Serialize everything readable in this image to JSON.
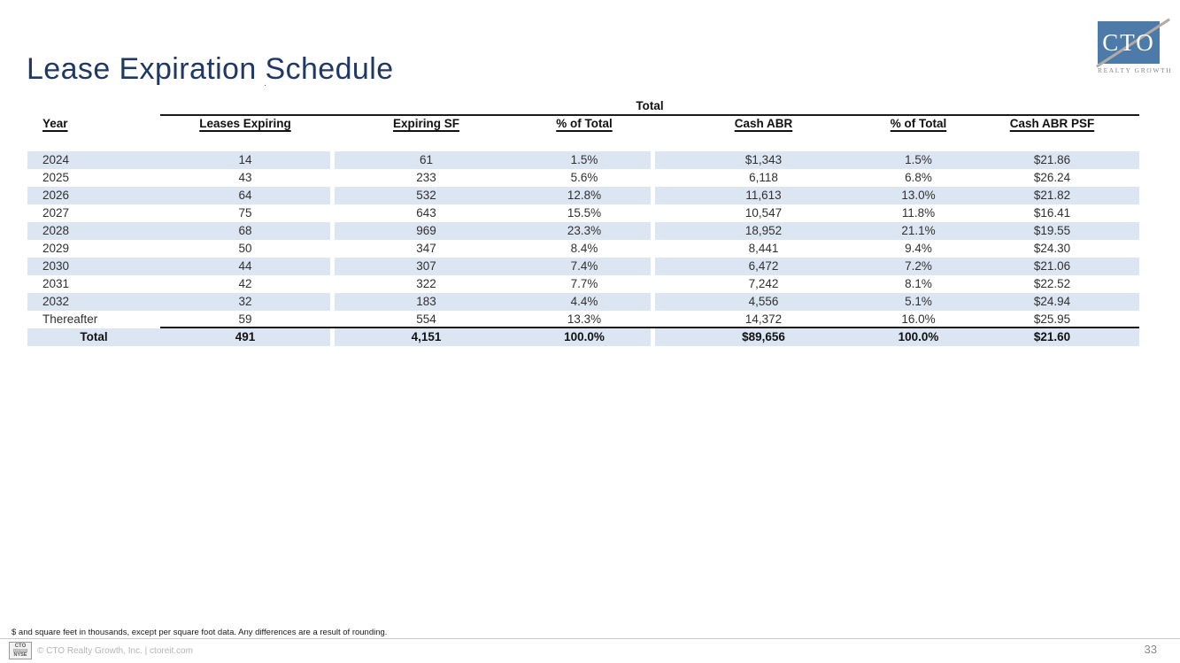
{
  "slide": {
    "title": "Lease Expiration Schedule",
    "artifact_dot": ".",
    "footnote": "$ and square feet in thousands, except per square foot data. Any differences are a result of rounding.",
    "footer_text": "© CTO Realty Growth, Inc. | ctoreit.com",
    "page_number": "33"
  },
  "logo": {
    "acronym": "CTO",
    "tagline": "REALTY GROWTH"
  },
  "nyse_badge": {
    "ticker": "CTO",
    "listed": "LISTED",
    "exchange": "NYSE"
  },
  "colors": {
    "title_blue": "#1f3864",
    "row_shade": "#dce6f2",
    "logo_blue": "#4d7ba9",
    "logo_stripe": "#b3aaa4",
    "header_text": "#111111",
    "footer_gray": "#b4b4b4"
  },
  "chart_data": {
    "type": "table",
    "title": "Lease Expiration Schedule",
    "group_header": "Total",
    "columns": [
      "Year",
      "Leases Expiring",
      "Expiring SF",
      "% of Total",
      "Cash ABR",
      "% of Total",
      "Cash ABR PSF"
    ],
    "rows": [
      [
        "2024",
        "14",
        "61",
        "1.5%",
        "$1,343",
        "1.5%",
        "$21.86"
      ],
      [
        "2025",
        "43",
        "233",
        "5.6%",
        "6,118",
        "6.8%",
        "$26.24"
      ],
      [
        "2026",
        "64",
        "532",
        "12.8%",
        "11,613",
        "13.0%",
        "$21.82"
      ],
      [
        "2027",
        "75",
        "643",
        "15.5%",
        "10,547",
        "11.8%",
        "$16.41"
      ],
      [
        "2028",
        "68",
        "969",
        "23.3%",
        "18,952",
        "21.1%",
        "$19.55"
      ],
      [
        "2029",
        "50",
        "347",
        "8.4%",
        "8,441",
        "9.4%",
        "$24.30"
      ],
      [
        "2030",
        "44",
        "307",
        "7.4%",
        "6,472",
        "7.2%",
        "$21.06"
      ],
      [
        "2031",
        "42",
        "322",
        "7.7%",
        "7,242",
        "8.1%",
        "$22.52"
      ],
      [
        "2032",
        "32",
        "183",
        "4.4%",
        "4,556",
        "5.1%",
        "$24.94"
      ],
      [
        "Thereafter",
        "59",
        "554",
        "13.3%",
        "14,372",
        "16.0%",
        "$25.95"
      ]
    ],
    "total_row": [
      "Total",
      "491",
      "4,151",
      "100.0%",
      "$89,656",
      "100.0%",
      "$21.60"
    ]
  }
}
